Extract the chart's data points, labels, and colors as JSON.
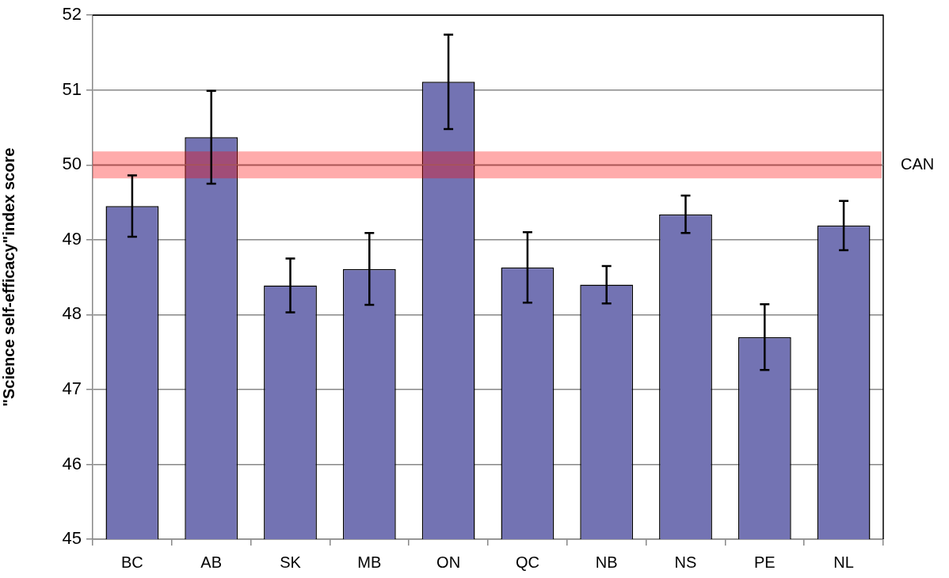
{
  "chart_data": {
    "type": "bar",
    "ylabel": "\"Science self-efficacy\"index score",
    "categories": [
      "BC",
      "AB",
      "SK",
      "MB",
      "ON",
      "QC",
      "NB",
      "NS",
      "PE",
      "NL"
    ],
    "values": [
      49.45,
      50.37,
      48.39,
      48.61,
      51.11,
      48.63,
      48.4,
      49.34,
      47.7,
      49.19
    ],
    "errors": [
      0.41,
      0.62,
      0.36,
      0.48,
      0.63,
      0.47,
      0.25,
      0.25,
      0.44,
      0.33
    ],
    "color": "#7373b3",
    "ylim": [
      45,
      52
    ],
    "yticks": [
      45,
      46,
      47,
      48,
      49,
      50,
      51,
      52
    ],
    "grid": "y",
    "ref_lines": [
      {
        "axis": "y",
        "value": 50,
        "label": "CAN",
        "color": "#7f7f7f"
      }
    ],
    "bands": [
      {
        "axis": "y",
        "from": 49.82,
        "to": 50.18,
        "color": "#ff0000"
      }
    ]
  }
}
